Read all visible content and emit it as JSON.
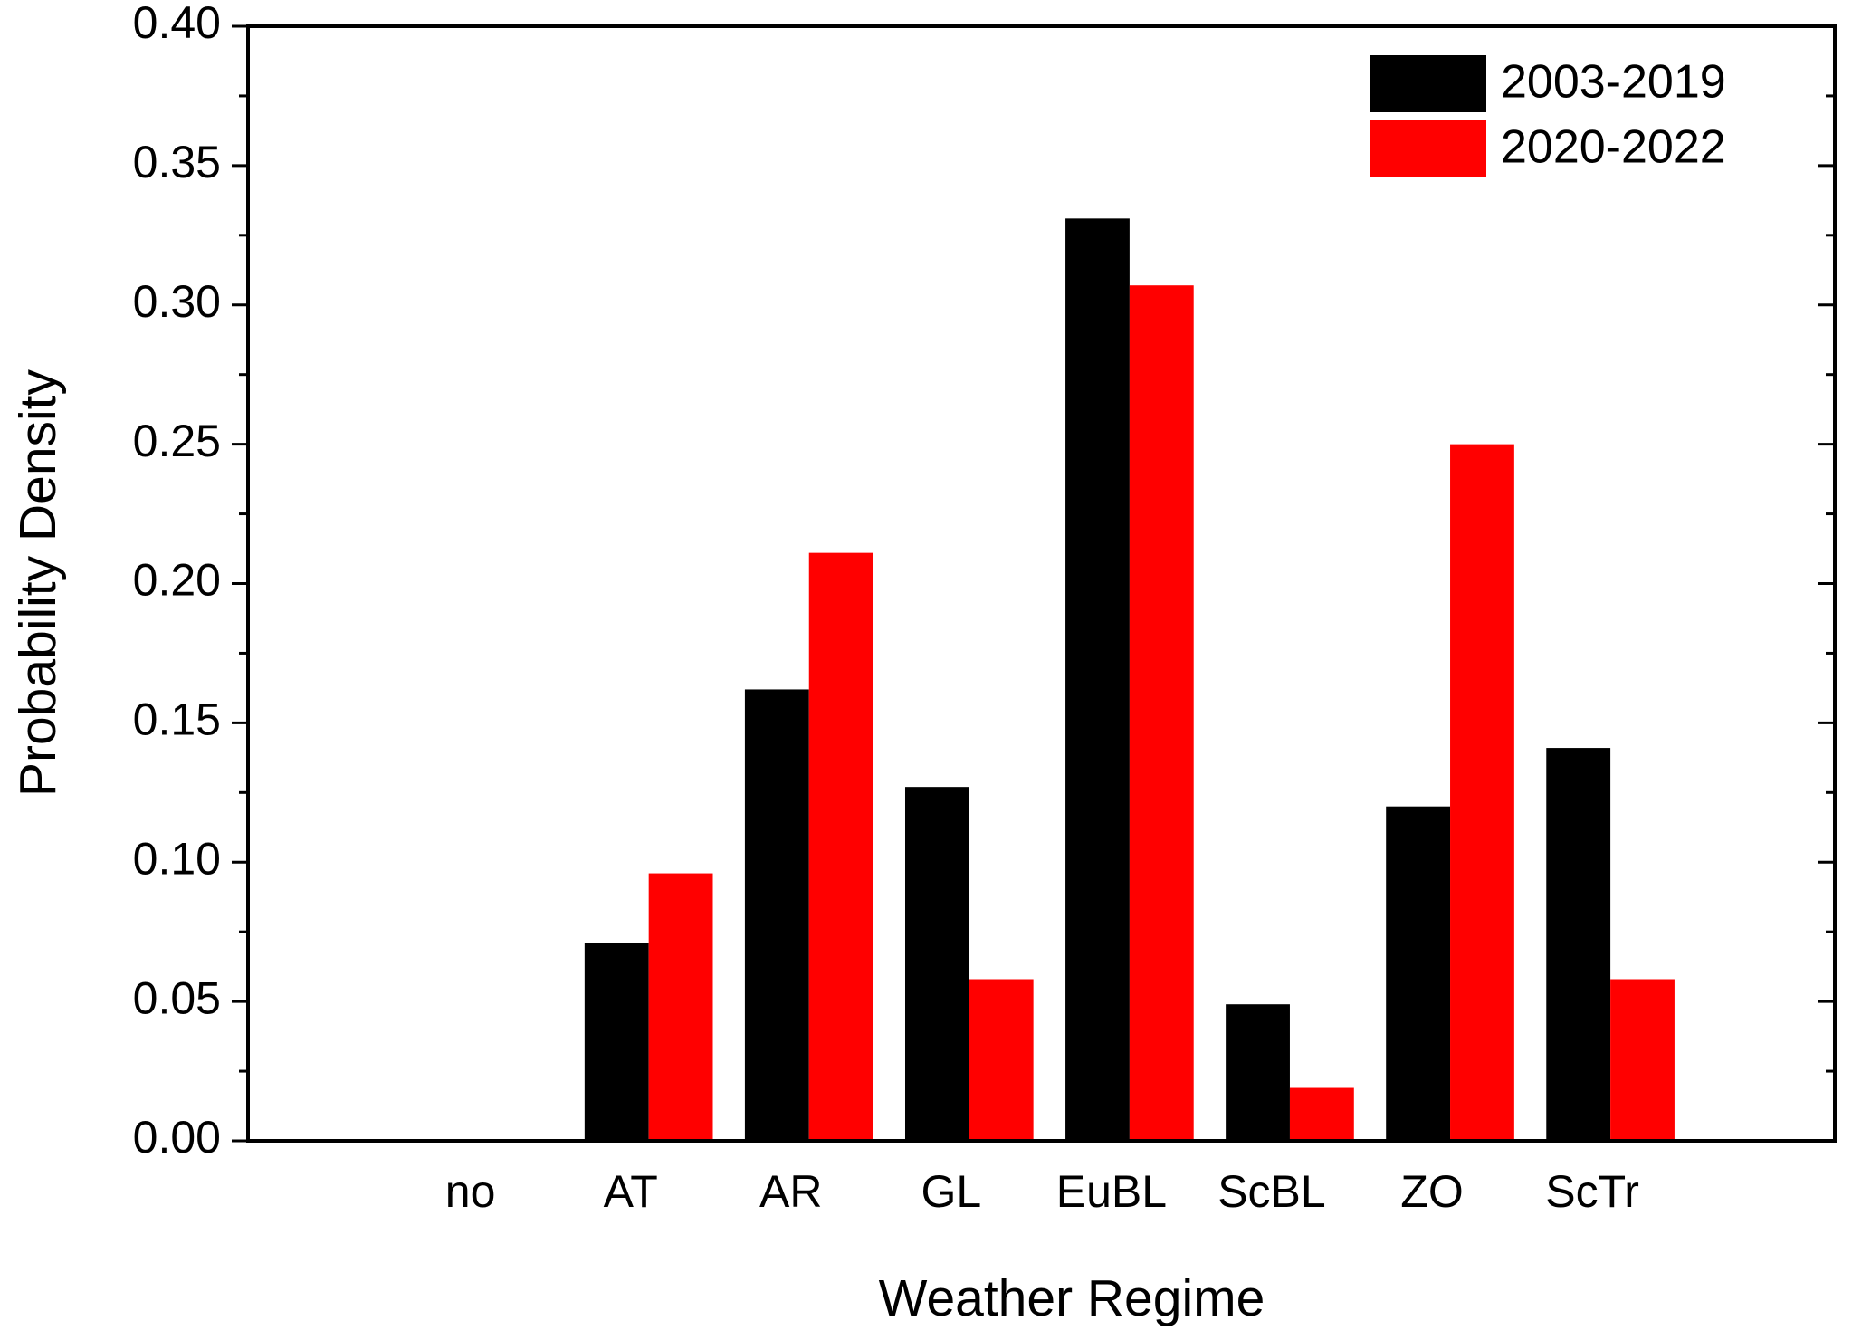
{
  "chart_data": {
    "type": "bar",
    "x_label": "Weather Regime",
    "y_label": "Probability Density",
    "categories": [
      "no",
      "AT",
      "AR",
      "GL",
      "EuBL",
      "ScBL",
      "ZO",
      "ScTr"
    ],
    "series": [
      {
        "name": "2003-2019",
        "color": "#000000",
        "values": [
          0,
          0.071,
          0.162,
          0.127,
          0.331,
          0.049,
          0.12,
          0.141
        ]
      },
      {
        "name": "2020-2022",
        "color": "#ff0000",
        "values": [
          0,
          0.096,
          0.211,
          0.058,
          0.307,
          0.019,
          0.25,
          0.058
        ]
      }
    ],
    "ylim": [
      0,
      0.4
    ],
    "yticks": [
      {
        "value": 0,
        "label": "0.00"
      },
      {
        "value": 0.05,
        "label": "0.05"
      },
      {
        "value": 0.1,
        "label": "0.10"
      },
      {
        "value": 0.15,
        "label": "0.15"
      },
      {
        "value": 0.2,
        "label": "0.20"
      },
      {
        "value": 0.25,
        "label": "0.25"
      },
      {
        "value": 0.3,
        "label": "0.30"
      },
      {
        "value": 0.35,
        "label": "0.35"
      },
      {
        "value": 0.4,
        "label": "0.40"
      }
    ],
    "minor_yticks": [
      0.025,
      0.075,
      0.125,
      0.175,
      0.225,
      0.275,
      0.325,
      0.375
    ],
    "legend": "top-right"
  }
}
